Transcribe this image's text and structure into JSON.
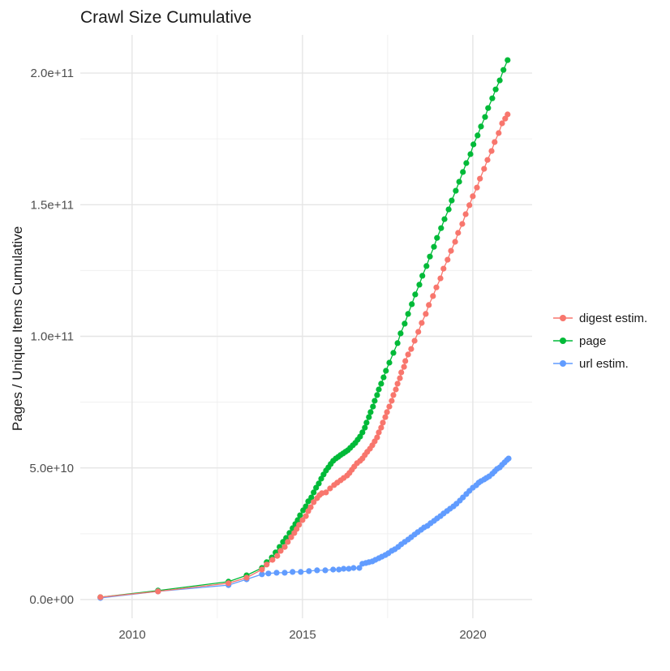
{
  "chart_data": {
    "type": "line",
    "title": "Crawl Size Cumulative",
    "ylabel": "Pages / Unique Items Cumulative",
    "xlabel": "",
    "y_values_unit": "billions (1e9 pages / unique items)",
    "xlim": [
      2008.48,
      2021.74
    ],
    "ylim": [
      -7.1,
      214.5
    ],
    "grid": {
      "major_color": "#e5e5e5",
      "minor_color": "#f0f0f0",
      "background": "#ffffff"
    },
    "legend_position": "right",
    "xticks": [
      {
        "value": 2010,
        "label": "2010"
      },
      {
        "value": 2015,
        "label": "2015"
      },
      {
        "value": 2020,
        "label": "2020"
      }
    ],
    "x_minor_ticks": [
      2012.5,
      2017.5
    ],
    "yticks": [
      {
        "value": 0,
        "label": "0.0e+00"
      },
      {
        "value": 50,
        "label": "5.0e+10"
      },
      {
        "value": 100,
        "label": "1.0e+11"
      },
      {
        "value": 150,
        "label": "1.5e+11"
      },
      {
        "value": 200,
        "label": "2.0e+11"
      }
    ],
    "y_minor_ticks": [
      25,
      75,
      125,
      175
    ],
    "series": [
      {
        "name": "digest estim.",
        "color": "#F8766D",
        "points": [
          [
            2009.07,
            0.9
          ],
          [
            2010.76,
            3.1
          ],
          [
            2012.83,
            6.2
          ],
          [
            2013.36,
            8.3
          ],
          [
            2013.81,
            11.4
          ],
          [
            2013.95,
            13.3
          ],
          [
            2014.12,
            15.1
          ],
          [
            2014.26,
            16.6
          ],
          [
            2014.36,
            18.5
          ],
          [
            2014.48,
            20.0
          ],
          [
            2014.57,
            21.9
          ],
          [
            2014.67,
            23.7
          ],
          [
            2014.76,
            25.3
          ],
          [
            2014.83,
            26.8
          ],
          [
            2014.9,
            28.4
          ],
          [
            2015.0,
            30.2
          ],
          [
            2015.1,
            31.7
          ],
          [
            2015.17,
            33.6
          ],
          [
            2015.24,
            35.1
          ],
          [
            2015.33,
            37.0
          ],
          [
            2015.43,
            38.5
          ],
          [
            2015.5,
            39.7
          ],
          [
            2015.57,
            40.4
          ],
          [
            2015.69,
            40.7
          ],
          [
            2015.81,
            42.2
          ],
          [
            2015.93,
            43.5
          ],
          [
            2016.02,
            44.4
          ],
          [
            2016.12,
            45.3
          ],
          [
            2016.21,
            46.2
          ],
          [
            2016.31,
            47.1
          ],
          [
            2016.38,
            48.1
          ],
          [
            2016.45,
            49.3
          ],
          [
            2016.52,
            50.5
          ],
          [
            2016.6,
            51.8
          ],
          [
            2016.69,
            52.7
          ],
          [
            2016.76,
            53.6
          ],
          [
            2016.83,
            54.9
          ],
          [
            2016.9,
            56.1
          ],
          [
            2016.98,
            57.3
          ],
          [
            2017.05,
            58.6
          ],
          [
            2017.12,
            60.1
          ],
          [
            2017.19,
            61.6
          ],
          [
            2017.24,
            63.5
          ],
          [
            2017.31,
            65.3
          ],
          [
            2017.36,
            67.2
          ],
          [
            2017.43,
            69.3
          ],
          [
            2017.48,
            71.2
          ],
          [
            2017.55,
            73.3
          ],
          [
            2017.62,
            75.5
          ],
          [
            2017.67,
            77.7
          ],
          [
            2017.74,
            79.8
          ],
          [
            2017.79,
            82.0
          ],
          [
            2017.86,
            84.1
          ],
          [
            2017.9,
            86.3
          ],
          [
            2017.98,
            88.4
          ],
          [
            2018.02,
            90.6
          ],
          [
            2018.1,
            93.1
          ],
          [
            2018.19,
            95.2
          ],
          [
            2018.29,
            98.3
          ],
          [
            2018.4,
            101.7
          ],
          [
            2018.5,
            105.1
          ],
          [
            2018.62,
            108.5
          ],
          [
            2018.71,
            111.9
          ],
          [
            2018.83,
            115.3
          ],
          [
            2018.93,
            118.6
          ],
          [
            2019.05,
            122.0
          ],
          [
            2019.14,
            125.7
          ],
          [
            2019.26,
            129.1
          ],
          [
            2019.36,
            132.5
          ],
          [
            2019.48,
            135.9
          ],
          [
            2019.57,
            139.3
          ],
          [
            2019.69,
            142.7
          ],
          [
            2019.79,
            146.4
          ],
          [
            2019.9,
            149.8
          ],
          [
            2020.0,
            153.2
          ],
          [
            2020.12,
            156.5
          ],
          [
            2020.21,
            159.9
          ],
          [
            2020.33,
            163.6
          ],
          [
            2020.43,
            167.0
          ],
          [
            2020.55,
            170.4
          ],
          [
            2020.64,
            173.8
          ],
          [
            2020.76,
            177.2
          ],
          [
            2020.86,
            180.9
          ],
          [
            2020.95,
            182.7
          ],
          [
            2021.02,
            184.3
          ]
        ]
      },
      {
        "name": "page",
        "color": "#00BA38",
        "points": [
          [
            2009.07,
            0.9
          ],
          [
            2010.76,
            3.4
          ],
          [
            2012.83,
            6.8
          ],
          [
            2013.36,
            9.2
          ],
          [
            2013.81,
            12.0
          ],
          [
            2013.95,
            14.2
          ],
          [
            2014.1,
            16.0
          ],
          [
            2014.21,
            17.9
          ],
          [
            2014.33,
            20.0
          ],
          [
            2014.43,
            21.9
          ],
          [
            2014.52,
            23.4
          ],
          [
            2014.62,
            25.3
          ],
          [
            2014.71,
            27.1
          ],
          [
            2014.79,
            28.7
          ],
          [
            2014.86,
            30.2
          ],
          [
            2014.93,
            32.0
          ],
          [
            2015.02,
            33.9
          ],
          [
            2015.1,
            35.4
          ],
          [
            2015.17,
            37.3
          ],
          [
            2015.26,
            38.8
          ],
          [
            2015.33,
            40.7
          ],
          [
            2015.4,
            42.5
          ],
          [
            2015.48,
            44.1
          ],
          [
            2015.55,
            45.9
          ],
          [
            2015.62,
            47.5
          ],
          [
            2015.69,
            49.0
          ],
          [
            2015.76,
            50.2
          ],
          [
            2015.83,
            51.5
          ],
          [
            2015.9,
            52.7
          ],
          [
            2015.98,
            53.6
          ],
          [
            2016.05,
            54.2
          ],
          [
            2016.12,
            54.9
          ],
          [
            2016.19,
            55.5
          ],
          [
            2016.26,
            56.1
          ],
          [
            2016.33,
            56.7
          ],
          [
            2016.4,
            57.6
          ],
          [
            2016.48,
            58.6
          ],
          [
            2016.55,
            59.5
          ],
          [
            2016.62,
            60.7
          ],
          [
            2016.69,
            61.9
          ],
          [
            2016.76,
            63.5
          ],
          [
            2016.83,
            65.3
          ],
          [
            2016.88,
            67.2
          ],
          [
            2016.95,
            69.3
          ],
          [
            2017.0,
            71.2
          ],
          [
            2017.07,
            73.3
          ],
          [
            2017.12,
            75.5
          ],
          [
            2017.19,
            77.7
          ],
          [
            2017.24,
            79.8
          ],
          [
            2017.31,
            82.0
          ],
          [
            2017.38,
            84.4
          ],
          [
            2017.45,
            86.9
          ],
          [
            2017.55,
            90.0
          ],
          [
            2017.67,
            93.7
          ],
          [
            2017.79,
            97.4
          ],
          [
            2017.88,
            101.1
          ],
          [
            2018.0,
            104.8
          ],
          [
            2018.1,
            108.5
          ],
          [
            2018.21,
            112.2
          ],
          [
            2018.31,
            115.9
          ],
          [
            2018.43,
            119.6
          ],
          [
            2018.52,
            123.0
          ],
          [
            2018.64,
            126.7
          ],
          [
            2018.74,
            130.3
          ],
          [
            2018.86,
            134.0
          ],
          [
            2018.95,
            137.4
          ],
          [
            2019.07,
            141.1
          ],
          [
            2019.17,
            144.5
          ],
          [
            2019.29,
            148.2
          ],
          [
            2019.38,
            151.6
          ],
          [
            2019.5,
            155.3
          ],
          [
            2019.6,
            158.7
          ],
          [
            2019.71,
            162.4
          ],
          [
            2019.81,
            165.8
          ],
          [
            2019.93,
            169.2
          ],
          [
            2020.02,
            172.9
          ],
          [
            2020.14,
            176.3
          ],
          [
            2020.24,
            179.7
          ],
          [
            2020.36,
            183.3
          ],
          [
            2020.45,
            186.7
          ],
          [
            2020.57,
            190.4
          ],
          [
            2020.67,
            193.8
          ],
          [
            2020.79,
            197.2
          ],
          [
            2020.9,
            201.2
          ],
          [
            2021.02,
            204.9
          ]
        ]
      },
      {
        "name": "url estim.",
        "color": "#619CFF",
        "points": [
          [
            2009.07,
            0.6
          ],
          [
            2010.76,
            3.1
          ],
          [
            2012.83,
            5.5
          ],
          [
            2013.36,
            7.7
          ],
          [
            2013.81,
            9.6
          ],
          [
            2014.0,
            9.9
          ],
          [
            2014.24,
            10.2
          ],
          [
            2014.48,
            10.2
          ],
          [
            2014.71,
            10.5
          ],
          [
            2014.95,
            10.5
          ],
          [
            2015.19,
            10.8
          ],
          [
            2015.43,
            11.1
          ],
          [
            2015.67,
            11.1
          ],
          [
            2015.9,
            11.4
          ],
          [
            2016.07,
            11.4
          ],
          [
            2016.21,
            11.7
          ],
          [
            2016.36,
            11.7
          ],
          [
            2016.5,
            12.0
          ],
          [
            2016.67,
            12.0
          ],
          [
            2016.76,
            13.6
          ],
          [
            2016.86,
            13.9
          ],
          [
            2016.95,
            14.2
          ],
          [
            2017.05,
            14.5
          ],
          [
            2017.14,
            15.1
          ],
          [
            2017.24,
            15.7
          ],
          [
            2017.33,
            16.3
          ],
          [
            2017.43,
            16.9
          ],
          [
            2017.52,
            17.6
          ],
          [
            2017.62,
            18.5
          ],
          [
            2017.71,
            19.1
          ],
          [
            2017.81,
            20.0
          ],
          [
            2017.9,
            21.0
          ],
          [
            2018.0,
            21.9
          ],
          [
            2018.1,
            22.8
          ],
          [
            2018.19,
            23.7
          ],
          [
            2018.29,
            24.7
          ],
          [
            2018.38,
            25.6
          ],
          [
            2018.48,
            26.5
          ],
          [
            2018.57,
            27.4
          ],
          [
            2018.67,
            28.0
          ],
          [
            2018.76,
            29.0
          ],
          [
            2018.86,
            29.9
          ],
          [
            2018.95,
            30.8
          ],
          [
            2019.05,
            31.7
          ],
          [
            2019.14,
            32.7
          ],
          [
            2019.24,
            33.6
          ],
          [
            2019.33,
            34.5
          ],
          [
            2019.43,
            35.4
          ],
          [
            2019.52,
            36.4
          ],
          [
            2019.62,
            37.6
          ],
          [
            2019.71,
            38.8
          ],
          [
            2019.81,
            40.1
          ],
          [
            2019.9,
            41.3
          ],
          [
            2020.0,
            42.5
          ],
          [
            2020.1,
            43.4
          ],
          [
            2020.17,
            44.4
          ],
          [
            2020.24,
            45.0
          ],
          [
            2020.33,
            45.6
          ],
          [
            2020.4,
            46.2
          ],
          [
            2020.48,
            46.8
          ],
          [
            2020.57,
            47.8
          ],
          [
            2020.64,
            48.7
          ],
          [
            2020.71,
            49.6
          ],
          [
            2020.79,
            50.2
          ],
          [
            2020.86,
            51.2
          ],
          [
            2020.93,
            52.1
          ],
          [
            2021.0,
            53.0
          ],
          [
            2021.05,
            53.6
          ]
        ]
      }
    ]
  },
  "legend": {
    "items": [
      {
        "label": "digest estim.",
        "color": "#F8766D"
      },
      {
        "label": "page",
        "color": "#00BA38"
      },
      {
        "label": "url estim.",
        "color": "#619CFF"
      }
    ]
  }
}
